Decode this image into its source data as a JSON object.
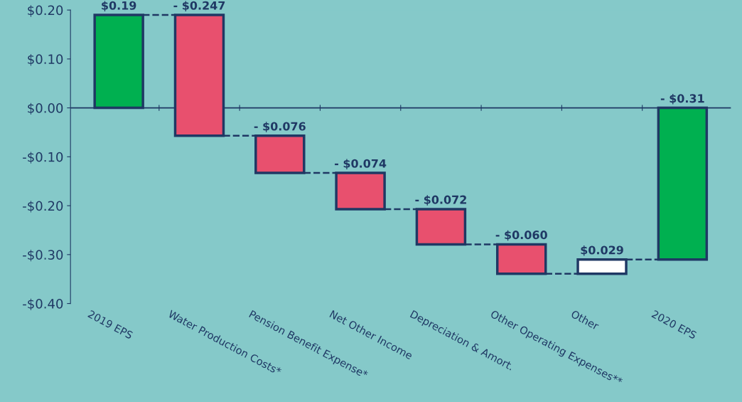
{
  "chart_data": {
    "type": "bar",
    "categories": [
      "2019 EPS",
      "Water Production Costs*",
      "Pension Benefit Expense*",
      "Net Other Income",
      "Depreciation & Amort.",
      "Other Operating Expenses**",
      "Other",
      "2020 EPS"
    ],
    "values": [
      0.19,
      -0.247,
      -0.076,
      -0.074,
      -0.072,
      -0.06,
      0.029,
      -0.31
    ],
    "base": [
      0,
      0.19,
      -0.057,
      -0.133,
      -0.207,
      -0.279,
      -0.339,
      0
    ],
    "colors": [
      "#00b050",
      "#e8506e",
      "#e8506e",
      "#e8506e",
      "#e8506e",
      "#e8506e",
      "#ffffff",
      "#00b050"
    ],
    "value_labels": [
      "$0.19",
      "- $0.247",
      "- $0.076",
      "- $0.074",
      "- $0.072",
      "- $0.060",
      "$0.029",
      "- $0.31"
    ],
    "ylim": [
      -0.4,
      0.2
    ],
    "yticks": [
      {
        "value": -0.4,
        "label": "-$0.40"
      },
      {
        "value": -0.3,
        "label": "-$0.30"
      },
      {
        "value": -0.2,
        "label": "-$0.20"
      },
      {
        "value": -0.1,
        "label": "-$0.10"
      },
      {
        "value": 0,
        "label": "$0.00"
      },
      {
        "value": 0.1,
        "label": "$0.10"
      },
      {
        "value": 0.2,
        "label": "$0.20"
      }
    ],
    "ref_lines": [
      {
        "axis": "y",
        "value": 0,
        "color": "#1f3864"
      }
    ],
    "grid": false,
    "legend": false
  }
}
